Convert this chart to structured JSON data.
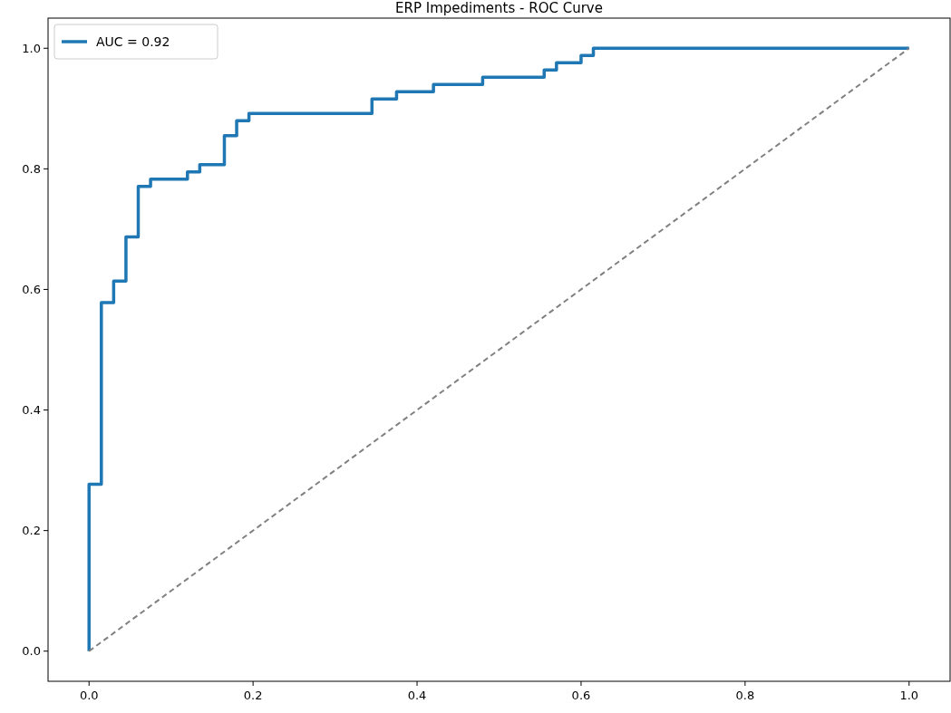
{
  "chart_data": {
    "type": "line",
    "title": "ERP Impediments - ROC Curve",
    "xlim": [
      -0.05,
      1.05
    ],
    "ylim": [
      -0.05,
      1.05
    ],
    "xticks": [
      {
        "value": 0,
        "label": "0.0"
      },
      {
        "value": 0.2,
        "label": "0.2"
      },
      {
        "value": 0.4,
        "label": "0.4"
      },
      {
        "value": 0.6,
        "label": "0.6"
      },
      {
        "value": 0.8,
        "label": "0.8"
      },
      {
        "value": 1,
        "label": "1.0"
      }
    ],
    "yticks": [
      {
        "value": 0,
        "label": "0.0"
      },
      {
        "value": 0.2,
        "label": "0.2"
      },
      {
        "value": 0.4,
        "label": "0.4"
      },
      {
        "value": 0.6,
        "label": "0.6"
      },
      {
        "value": 0.8,
        "label": "0.8"
      },
      {
        "value": 1,
        "label": "1.0"
      }
    ],
    "legend": "top left",
    "grid": false,
    "series": [
      {
        "name": "AUC = 0.92",
        "type": "step",
        "color": "#1f77b4",
        "line_style": "solid",
        "x": [
          0,
          0,
          0.015,
          0.03,
          0.045,
          0.06,
          0.075,
          0.12,
          0.135,
          0.165,
          0.18,
          0.195,
          0.345,
          0.375,
          0.42,
          0.48,
          0.555,
          0.57,
          0.6,
          0.615,
          1.0
        ],
        "values": [
          0,
          0.277,
          0.578,
          0.614,
          0.687,
          0.771,
          0.783,
          0.795,
          0.807,
          0.855,
          0.88,
          0.892,
          0.916,
          0.928,
          0.94,
          0.952,
          0.964,
          0.976,
          0.988,
          1.0,
          1.0
        ]
      },
      {
        "type": "line",
        "color": "#808080",
        "line_style": "dashed",
        "x": [
          0,
          1
        ],
        "values": [
          0,
          1
        ]
      }
    ]
  }
}
